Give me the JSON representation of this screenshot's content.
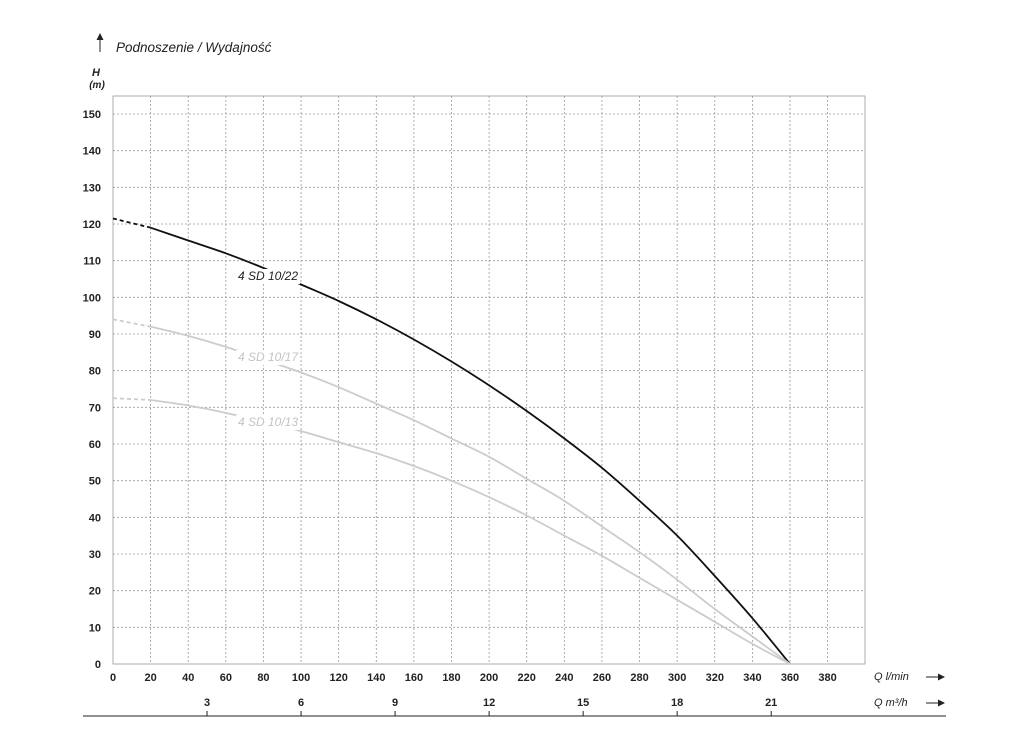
{
  "chart_data": {
    "type": "line",
    "title": "Podnoszenie / Wydajność",
    "ylabel": "H",
    "yunit": "(m)",
    "xlabel": "Q l/min",
    "x2label": "Q m³/h",
    "xlim": [
      0,
      400
    ],
    "ylim": [
      0,
      155
    ],
    "x_ticks": [
      0,
      20,
      40,
      60,
      80,
      100,
      120,
      140,
      160,
      180,
      200,
      220,
      240,
      260,
      280,
      300,
      320,
      340,
      360,
      380
    ],
    "y_ticks": [
      0,
      10,
      20,
      30,
      40,
      50,
      60,
      70,
      80,
      90,
      100,
      110,
      120,
      130,
      140,
      150
    ],
    "x2_ticks": [
      3,
      6,
      9,
      12,
      15,
      18,
      21
    ],
    "grid": true,
    "series": [
      {
        "name": "4 SD 10/22",
        "color": "#111111",
        "dashed_until": 20,
        "x": [
          0,
          20,
          40,
          60,
          80,
          100,
          120,
          140,
          160,
          180,
          200,
          220,
          240,
          260,
          280,
          300,
          320,
          340,
          360
        ],
        "y": [
          121.5,
          119,
          115.5,
          112,
          108,
          103.5,
          99,
          94,
          88.5,
          82.5,
          76,
          69,
          61.5,
          53.5,
          44.5,
          35,
          24,
          12.5,
          0
        ]
      },
      {
        "name": "4 SD 10/17",
        "color": "#cccccc",
        "dashed_until": 20,
        "x": [
          0,
          20,
          40,
          60,
          80,
          100,
          120,
          140,
          160,
          180,
          200,
          220,
          240,
          260,
          280,
          300,
          320,
          340,
          360
        ],
        "y": [
          94,
          92,
          89.5,
          86.5,
          83,
          79.5,
          75.5,
          71,
          66.5,
          61.5,
          56.5,
          50.5,
          44.5,
          37.5,
          30.5,
          23,
          15,
          7.5,
          0
        ]
      },
      {
        "name": "4 SD 10/13",
        "color": "#cccccc",
        "dashed_until": 20,
        "x": [
          0,
          20,
          40,
          60,
          80,
          100,
          120,
          140,
          160,
          180,
          200,
          220,
          240,
          260,
          280,
          300,
          320,
          340,
          360
        ],
        "y": [
          72.5,
          72,
          70.5,
          68.5,
          66,
          63.5,
          60.5,
          57.5,
          54,
          50,
          45.5,
          40.5,
          35,
          29.5,
          23.5,
          17.5,
          11.5,
          5.5,
          0
        ]
      }
    ]
  }
}
